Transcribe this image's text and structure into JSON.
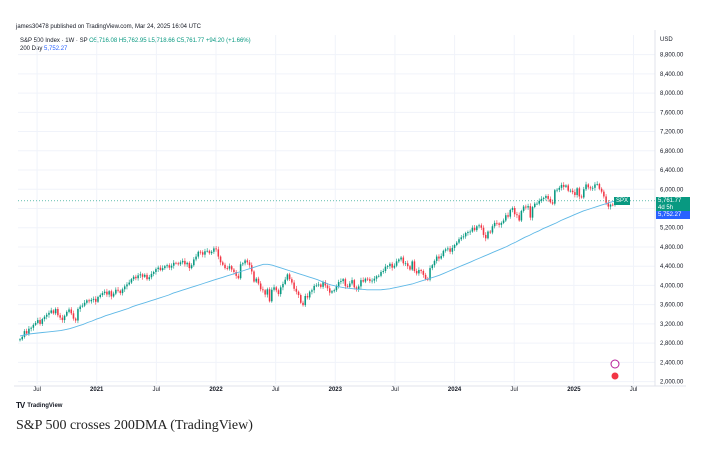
{
  "header": {
    "published": "james30478 published on TradingView.com, Mar 24, 2025 16:04 UTC",
    "symbol": "S&P 500 Index · 1W · SP",
    "ohlc": "O5,716.08 H5,762.95 L5,718.66 C5,761.77 +94.20 (+1.66%)",
    "ma_label": "200 Day",
    "ma_value": "5,752.27",
    "currency": "USD"
  },
  "tags": {
    "spx": "SPX",
    "price": "5,761.77",
    "countdown": "4d 5h",
    "ma": "5,752.27"
  },
  "footer": {
    "logo_text": "TradingView"
  },
  "caption": "S&P 500 crosses 200DMA (TradingView)",
  "colors": {
    "up": "#089981",
    "down": "#f23645",
    "ma": "#5eb8e6",
    "last_price_line": "#089981",
    "ma_tag": "#2962ff"
  },
  "chart_data": {
    "type": "candlestick",
    "title": "S&P 500 Index · 1W · SP",
    "y_ticks": [
      2000,
      2400,
      2800,
      3200,
      3600,
      4000,
      4400,
      4800,
      5200,
      5600,
      6000,
      6400,
      6800,
      7200,
      7600,
      8000,
      8400,
      8800
    ],
    "y_tick_labels": [
      "2,000.00",
      "2,400.00",
      "2,800.00",
      "3,200.00",
      "3,600.00",
      "4,000.00",
      "4,400.00",
      "4,800.00",
      "5,200.00",
      "5,600.00",
      "6,000.00",
      "6,400.00",
      "6,800.00",
      "7,200.00",
      "7,600.00",
      "8,000.00",
      "8,400.00",
      "8,800.00"
    ],
    "ylim": [
      1950,
      9000
    ],
    "x_ticks": [
      {
        "t": 2020.5,
        "label": "Jul"
      },
      {
        "t": 2021.0,
        "label": "2021"
      },
      {
        "t": 2021.5,
        "label": "Jul"
      },
      {
        "t": 2022.0,
        "label": "2022"
      },
      {
        "t": 2022.5,
        "label": "Jul"
      },
      {
        "t": 2023.0,
        "label": "2023"
      },
      {
        "t": 2023.5,
        "label": "Jul"
      },
      {
        "t": 2024.0,
        "label": "2024"
      },
      {
        "t": 2024.5,
        "label": "Jul"
      },
      {
        "t": 2025.0,
        "label": "2025"
      },
      {
        "t": 2025.5,
        "label": "Jul"
      }
    ],
    "xlim": [
      2020.34,
      2025.68
    ],
    "closes": [
      2880,
      2930,
      3050,
      3000,
      3100,
      3120,
      3180,
      3220,
      3280,
      3200,
      3300,
      3350,
      3390,
      3430,
      3480,
      3420,
      3510,
      3380,
      3330,
      3280,
      3370,
      3450,
      3500,
      3420,
      3310,
      3270,
      3510,
      3560,
      3580,
      3640,
      3690,
      3670,
      3700,
      3720,
      3660,
      3760,
      3800,
      3840,
      3870,
      3810,
      3880,
      3770,
      3830,
      3910,
      3890,
      3840,
      3920,
      3980,
      4020,
      4060,
      4130,
      4180,
      4150,
      4210,
      4230,
      4180,
      4220,
      4130,
      4170,
      4240,
      4280,
      4340,
      4370,
      4320,
      4360,
      4400,
      4420,
      4370,
      4410,
      4470,
      4460,
      4440,
      4480,
      4510,
      4440,
      4470,
      4360,
      4420,
      4540,
      4600,
      4700,
      4690,
      4640,
      4710,
      4720,
      4670,
      4700,
      4770,
      4750,
      4600,
      4480,
      4430,
      4360,
      4350,
      4400,
      4330,
      4280,
      4200,
      4150,
      4440,
      4460,
      4520,
      4480,
      4420,
      4290,
      4080,
      4140,
      4040,
      3920,
      3900,
      3810,
      3920,
      3670,
      3910,
      3960,
      3900,
      3820,
      3960,
      4030,
      4120,
      4230,
      4130,
      4060,
      3930,
      3870,
      3800,
      3640,
      3590,
      3780,
      3750,
      3870,
      3900,
      3990,
      4000,
      4020,
      3970,
      4070,
      4000,
      3940,
      3850,
      3880,
      3900,
      3980,
      4070,
      4090,
      4130,
      3990,
      3970,
      4040,
      4110,
      3960,
      3920,
      3980,
      4110,
      4080,
      4140,
      4130,
      4090,
      4100,
      4140,
      4190,
      4200,
      4280,
      4300,
      4390,
      4400,
      4450,
      4370,
      4410,
      4500,
      4540,
      4580,
      4460,
      4460,
      4400,
      4330,
      4500,
      4300,
      4250,
      4320,
      4300,
      4220,
      4130,
      4120,
      4360,
      4420,
      4510,
      4600,
      4560,
      4610,
      4720,
      4750,
      4770,
      4700,
      4780,
      4840,
      4890,
      4960,
      5000,
      5020,
      5090,
      5110,
      5120,
      5200,
      5150,
      5230,
      5250,
      5200,
      5050,
      4980,
      5120,
      5100,
      5230,
      5300,
      5290,
      5260,
      5300,
      5350,
      5460,
      5430,
      5570,
      5610,
      5480,
      5460,
      5350,
      5550,
      5640,
      5620,
      5650,
      5410,
      5630,
      5700,
      5700,
      5760,
      5800,
      5820,
      5860,
      5800,
      5730,
      5700,
      5980,
      5990,
      6030,
      6090,
      6050,
      6080,
      5970,
      5970,
      5940,
      5880,
      6020,
      5850,
      5830,
      6000,
      6100,
      6040,
      6020,
      6030,
      6100,
      6110,
      6010,
      5950,
      5850,
      5720,
      5640,
      5680,
      5670,
      5760
    ],
    "ma200": [
      2950,
      2970,
      2990,
      3000,
      3010,
      3020,
      3030,
      3040,
      3050,
      3060,
      3080,
      3100,
      3130,
      3160,
      3190,
      3230,
      3260,
      3300,
      3330,
      3370,
      3400,
      3430,
      3460,
      3490,
      3520,
      3560,
      3590,
      3620,
      3650,
      3680,
      3710,
      3740,
      3770,
      3800,
      3840,
      3870,
      3900,
      3930,
      3960,
      3990,
      4020,
      4050,
      4080,
      4110,
      4140,
      4170,
      4200,
      4230,
      4260,
      4290,
      4320,
      4350,
      4380,
      4410,
      4440,
      4440,
      4420,
      4390,
      4360,
      4330,
      4300,
      4270,
      4240,
      4210,
      4180,
      4150,
      4120,
      4080,
      4040,
      4010,
      3990,
      3970,
      3950,
      3940,
      3930,
      3920,
      3920,
      3910,
      3910,
      3910,
      3910,
      3920,
      3930,
      3950,
      3970,
      3990,
      4010,
      4030,
      4060,
      4090,
      4120,
      4150,
      4180,
      4210,
      4250,
      4290,
      4330,
      4370,
      4410,
      4450,
      4490,
      4530,
      4570,
      4610,
      4650,
      4690,
      4730,
      4770,
      4810,
      4860,
      4900,
      4950,
      5000,
      5040,
      5090,
      5130,
      5180,
      5220,
      5260,
      5300,
      5350,
      5390,
      5430,
      5470,
      5510,
      5550,
      5580,
      5610,
      5640,
      5670,
      5700,
      5730,
      5752
    ]
  }
}
